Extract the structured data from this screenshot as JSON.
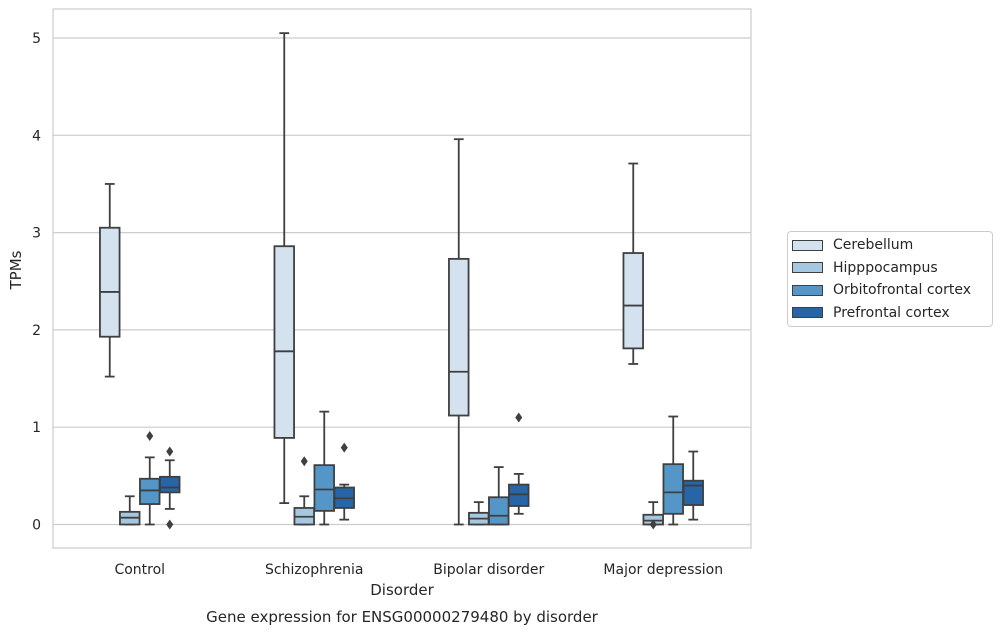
{
  "chart_data": {
    "type": "box",
    "caption": "Gene expression for ENSG00000279480 by disorder",
    "xlabel": "Disorder",
    "ylabel": "TPMs",
    "ylim": [
      -0.25,
      5.3
    ],
    "yticks": [
      0,
      1,
      2,
      3,
      4,
      5
    ],
    "grid": true,
    "legend_position": "right",
    "categories": [
      "Control",
      "Schizophrenia",
      "Bipolar disorder",
      "Major depression"
    ],
    "series": [
      {
        "name": "Cerebellum",
        "color": "#d4e1ef",
        "boxes": [
          {
            "whisker_low": 1.52,
            "q1": 1.93,
            "median": 2.39,
            "q3": 3.05,
            "whisker_high": 3.5,
            "outliers": []
          },
          {
            "whisker_low": 0.22,
            "q1": 0.89,
            "median": 1.78,
            "q3": 2.86,
            "whisker_high": 5.05,
            "outliers": []
          },
          {
            "whisker_low": 0.0,
            "q1": 1.12,
            "median": 1.57,
            "q3": 2.73,
            "whisker_high": 3.96,
            "outliers": []
          },
          {
            "whisker_low": 1.65,
            "q1": 1.81,
            "median": 2.25,
            "q3": 2.79,
            "whisker_high": 3.71,
            "outliers": []
          }
        ]
      },
      {
        "name": "Hipppocampus",
        "color": "#a5c8e0",
        "boxes": [
          {
            "whisker_low": 0.0,
            "q1": 0.0,
            "median": 0.07,
            "q3": 0.13,
            "whisker_high": 0.29,
            "outliers": []
          },
          {
            "whisker_low": 0.0,
            "q1": 0.0,
            "median": 0.08,
            "q3": 0.17,
            "whisker_high": 0.29,
            "outliers": [
              0.65
            ]
          },
          {
            "whisker_low": 0.0,
            "q1": 0.0,
            "median": 0.06,
            "q3": 0.12,
            "whisker_high": 0.23,
            "outliers": []
          },
          {
            "whisker_low": 0.0,
            "q1": 0.0,
            "median": 0.04,
            "q3": 0.1,
            "whisker_high": 0.23,
            "outliers": [
              0.0
            ]
          }
        ]
      },
      {
        "name": "Orbitofrontal cortex",
        "color": "#5596c8",
        "boxes": [
          {
            "whisker_low": 0.0,
            "q1": 0.21,
            "median": 0.35,
            "q3": 0.47,
            "whisker_high": 0.69,
            "outliers": [
              0.91
            ]
          },
          {
            "whisker_low": 0.0,
            "q1": 0.14,
            "median": 0.36,
            "q3": 0.61,
            "whisker_high": 1.16,
            "outliers": []
          },
          {
            "whisker_low": 0.0,
            "q1": 0.0,
            "median": 0.09,
            "q3": 0.28,
            "whisker_high": 0.59,
            "outliers": []
          },
          {
            "whisker_low": 0.0,
            "q1": 0.11,
            "median": 0.33,
            "q3": 0.62,
            "whisker_high": 1.11,
            "outliers": []
          }
        ]
      },
      {
        "name": "Prefrontal cortex",
        "color": "#2865a6",
        "boxes": [
          {
            "whisker_low": 0.16,
            "q1": 0.33,
            "median": 0.38,
            "q3": 0.49,
            "whisker_high": 0.66,
            "outliers": [
              0.75,
              0.0
            ]
          },
          {
            "whisker_low": 0.05,
            "q1": 0.17,
            "median": 0.27,
            "q3": 0.38,
            "whisker_high": 0.41,
            "outliers": [
              0.79
            ]
          },
          {
            "whisker_low": 0.11,
            "q1": 0.19,
            "median": 0.31,
            "q3": 0.41,
            "whisker_high": 0.52,
            "outliers": [
              1.1
            ]
          },
          {
            "whisker_low": 0.05,
            "q1": 0.2,
            "median": 0.4,
            "q3": 0.45,
            "whisker_high": 0.75,
            "outliers": []
          }
        ]
      }
    ]
  }
}
